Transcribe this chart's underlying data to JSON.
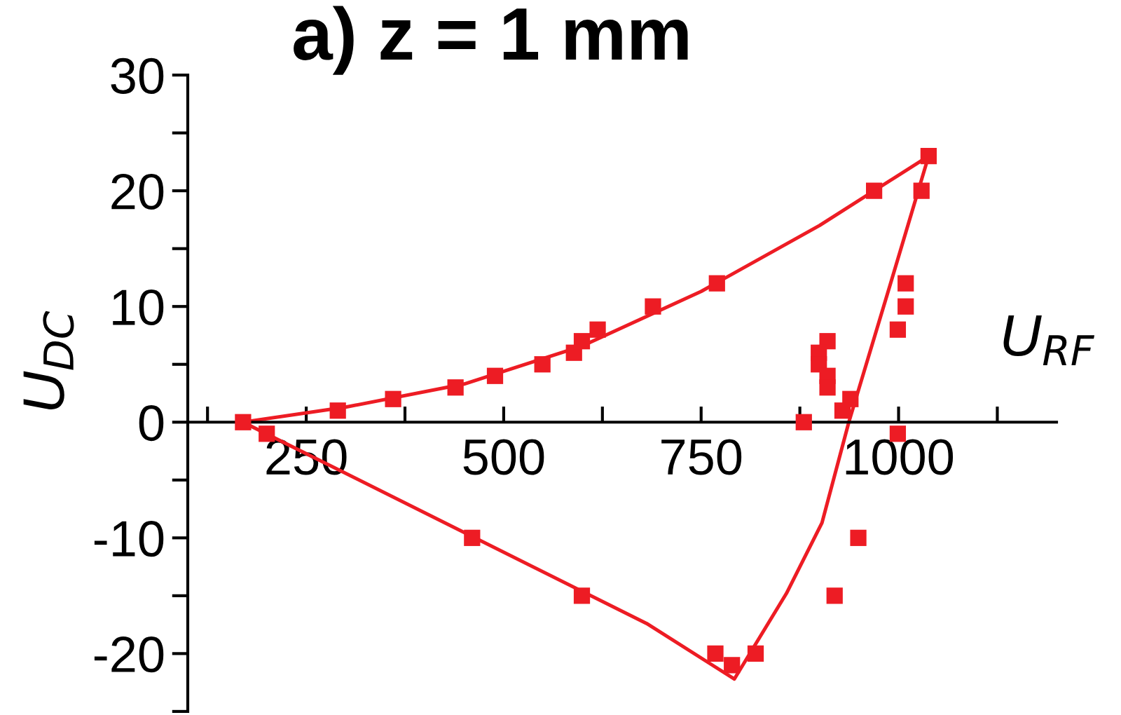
{
  "chart_data": {
    "type": "scatter",
    "title": "a) z = 1 mm",
    "xlabel": "U$_{RF}$",
    "ylabel": "U$_{DC}$",
    "xlim": [
      100,
      1200
    ],
    "ylim": [
      -25,
      30
    ],
    "xticks": [
      {
        "value": 125,
        "label": null
      },
      250,
      {
        "value": 375,
        "label": null
      },
      500,
      {
        "value": 625,
        "label": null
      },
      750,
      {
        "value": 875,
        "label": null
      },
      1000,
      {
        "value": 1125,
        "label": null
      }
    ],
    "yticks": [
      {
        "value": -25,
        "label": null
      },
      -20,
      {
        "value": -15,
        "label": null
      },
      -10,
      {
        "value": -5,
        "label": null
      },
      0,
      {
        "value": 5,
        "label": null
      },
      10,
      {
        "value": 15,
        "label": null
      },
      20,
      {
        "value": 25,
        "label": null
      },
      30
    ],
    "marker": "square",
    "grid": false,
    "legend": false,
    "series": [
      {
        "color": "#ed1c24",
        "x": [
          170,
          200,
          290,
          360,
          439,
          489,
          549,
          589,
          599,
          619,
          689,
          770,
          969,
          1038,
          1029,
          1009,
          1009,
          999,
          910,
          899,
          899,
          910,
          910,
          939,
          929,
          880,
          999,
          460,
          599,
          768,
          789,
          819,
          949,
          919
        ],
        "values": [
          0,
          -1,
          1,
          2,
          3,
          4,
          5,
          6,
          7,
          8,
          10,
          12,
          20,
          23,
          20,
          12,
          10,
          8,
          7,
          6,
          5,
          4,
          3,
          2,
          1,
          0,
          -1,
          -10,
          -15,
          -20,
          -21,
          -20,
          -10,
          -15
        ]
      },
      {
        "type": "line",
        "color": "#ed1c24",
        "marker": "none",
        "x": [
          170,
          300,
          450,
          600,
          750,
          900,
          1038
        ],
        "values": [
          0,
          1.3,
          3.3,
          6.6,
          11.3,
          17,
          23
        ]
      },
      {
        "type": "line",
        "color": "#ed1c24",
        "marker": "none",
        "x": [
          170,
          681,
          792,
          858,
          903,
          937,
          989,
          1038
        ],
        "values": [
          0,
          -17.4,
          -22.2,
          -14.8,
          -8.7,
          0,
          11.8,
          23
        ]
      }
    ]
  }
}
